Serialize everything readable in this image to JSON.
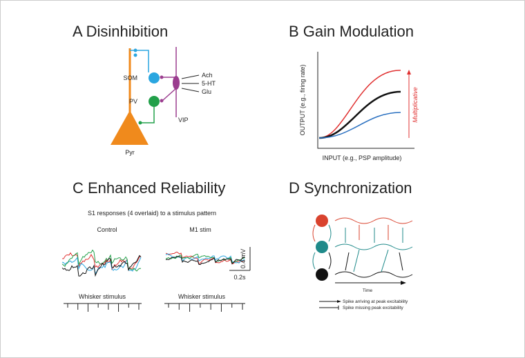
{
  "panels": [
    {
      "title": "A Disinhibition",
      "labels": {
        "som": "SOM",
        "pv": "PV",
        "vip": "VIP",
        "pyr": "Pyr",
        "inputs": [
          "Ach",
          "5-HT",
          "Glu"
        ]
      }
    },
    {
      "title": "B Gain Modulation",
      "y_axis_label": "OUTPUT (e.g., firing rate)",
      "x_axis_label": "INPUT (e.g., PSP amplitude)",
      "annotation": "Multiplicative"
    },
    {
      "title": "C Enhanced Reliability",
      "subtitle": "S1 responses (4 overlaid) to a stimulus pattern",
      "conditions": [
        "Control",
        "M1 stim"
      ],
      "voltage_scale": "0.4 mV",
      "time_scale": "0.2s",
      "stimulus_labels": [
        "Whisker stimulus",
        "Whisker stimulus"
      ]
    },
    {
      "title": "D Synchronization",
      "x_axis_label": "Time",
      "legend": [
        "Spike arriving at peak excitability",
        "Spike missing peak excitability"
      ]
    }
  ]
}
